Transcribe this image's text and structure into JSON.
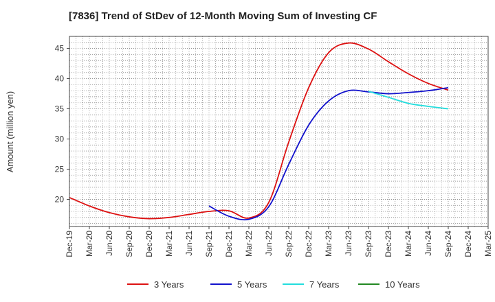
{
  "chart_data": {
    "type": "line",
    "title": "[7836]  Trend of StDev of 12-Month Moving Sum of Investing CF",
    "xlabel": "",
    "ylabel": "Amount (million yen)",
    "ylim": [
      15.5,
      47
    ],
    "yticks": [
      20,
      25,
      30,
      35,
      40,
      45
    ],
    "x_tick_labels": [
      "Dec-19",
      "Mar-20",
      "Jun-20",
      "Sep-20",
      "Dec-20",
      "Mar-21",
      "Jun-21",
      "Sep-21",
      "Dec-21",
      "Mar-22",
      "Jun-22",
      "Sep-22",
      "Dec-22",
      "Mar-23",
      "Jun-23",
      "Sep-23",
      "Dec-23",
      "Mar-24",
      "Jun-24",
      "Sep-24",
      "Dec-24",
      "Mar-25"
    ],
    "grid": true,
    "legend_position": "bottom",
    "series": [
      {
        "name": "3 Years",
        "color": "#dd1111",
        "points": [
          [
            "Dec-19",
            20.3
          ],
          [
            "Mar-20",
            18.9
          ],
          [
            "Jun-20",
            17.8
          ],
          [
            "Sep-20",
            17.1
          ],
          [
            "Dec-20",
            16.8
          ],
          [
            "Mar-21",
            17.0
          ],
          [
            "Jun-21",
            17.5
          ],
          [
            "Sep-21",
            18.0
          ],
          [
            "Dec-21",
            18.1
          ],
          [
            "Mar-22",
            16.9
          ],
          [
            "Jun-22",
            19.5
          ],
          [
            "Sep-22",
            29.5
          ],
          [
            "Dec-22",
            38.5
          ],
          [
            "Mar-23",
            44.3
          ],
          [
            "Jun-23",
            45.9
          ],
          [
            "Sep-23",
            44.9
          ],
          [
            "Dec-23",
            42.8
          ],
          [
            "Mar-24",
            40.8
          ],
          [
            "Jun-24",
            39.2
          ],
          [
            "Sep-24",
            38.1
          ]
        ]
      },
      {
        "name": "5 Years",
        "color": "#1111cc",
        "points": [
          [
            "Sep-21",
            18.9
          ],
          [
            "Dec-21",
            17.2
          ],
          [
            "Mar-22",
            16.7
          ],
          [
            "Jun-22",
            18.8
          ],
          [
            "Sep-22",
            25.8
          ],
          [
            "Dec-22",
            32.3
          ],
          [
            "Mar-23",
            36.3
          ],
          [
            "Jun-23",
            38.0
          ],
          [
            "Sep-23",
            37.8
          ],
          [
            "Dec-23",
            37.5
          ],
          [
            "Mar-24",
            37.7
          ],
          [
            "Jun-24",
            38.0
          ],
          [
            "Sep-24",
            38.5
          ]
        ]
      },
      {
        "name": "7 Years",
        "color": "#22dddd",
        "points": [
          [
            "Sep-23",
            37.9
          ],
          [
            "Dec-23",
            36.9
          ],
          [
            "Mar-24",
            35.9
          ],
          [
            "Jun-24",
            35.4
          ],
          [
            "Sep-24",
            35.0
          ]
        ]
      },
      {
        "name": "10 Years",
        "color": "#228822",
        "points": []
      }
    ]
  }
}
